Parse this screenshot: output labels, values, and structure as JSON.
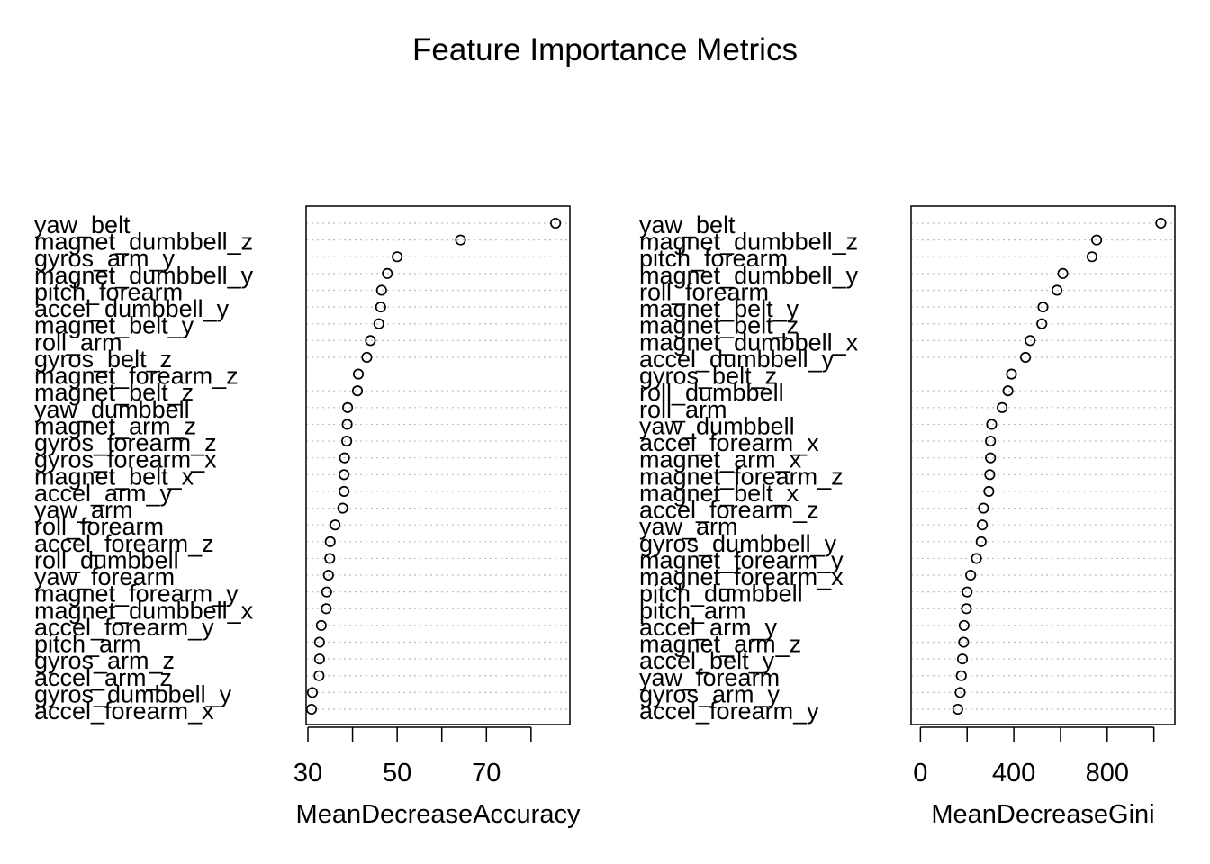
{
  "title": "Feature Importance Metrics",
  "chart_data": [
    {
      "type": "dotchart",
      "title": "",
      "xlabel": "MeanDecreaseAccuracy",
      "ylabel": "",
      "xlim": [
        29.6,
        88.7
      ],
      "xticks": [
        30,
        40,
        50,
        60,
        70,
        80
      ],
      "xtick_labels": [
        "30",
        "",
        "50",
        "",
        "70",
        ""
      ],
      "grid": "dotted horizontal",
      "point_color": "#000000",
      "categories": [
        "yaw_belt",
        "magnet_dumbbell_z",
        "gyros_arm_y",
        "magnet_dumbbell_y",
        "pitch_forearm",
        "accel_dumbbell_y",
        "magnet_belt_y",
        "roll_arm",
        "gyros_belt_z",
        "magnet_forearm_z",
        "magnet_belt_z",
        "yaw_dumbbell",
        "magnet_arm_z",
        "gyros_forearm_z",
        "gyros_forearm_x",
        "magnet_belt_x",
        "accel_arm_y",
        "yaw_arm",
        "roll_forearm",
        "accel_forearm_z",
        "roll_dumbbell",
        "yaw_forearm",
        "magnet_forearm_y",
        "magnet_dumbbell_x",
        "accel_forearm_y",
        "pitch_arm",
        "gyros_arm_z",
        "accel_arm_z",
        "gyros_dumbbell_y",
        "accel_forearm_x"
      ],
      "values": [
        85.5,
        64.2,
        50.0,
        47.8,
        46.5,
        46.3,
        45.9,
        44.0,
        43.2,
        41.3,
        41.1,
        38.9,
        38.8,
        38.7,
        38.2,
        38.1,
        38.1,
        37.8,
        36.1,
        35.0,
        34.9,
        34.6,
        34.2,
        34.1,
        33.0,
        32.6,
        32.6,
        32.5,
        31.0,
        30.8
      ]
    },
    {
      "type": "dotchart",
      "title": "",
      "xlabel": "MeanDecreaseGini",
      "ylabel": "",
      "xlim": [
        -40,
        1090
      ],
      "xticks": [
        0,
        200,
        400,
        600,
        800,
        1000
      ],
      "xtick_labels": [
        "0",
        "",
        "400",
        "",
        "800",
        ""
      ],
      "grid": "dotted horizontal",
      "point_color": "#000000",
      "categories": [
        "yaw_belt",
        "magnet_dumbbell_z",
        "pitch_forearm",
        "magnet_dumbbell_y",
        "roll_forearm",
        "magnet_belt_y",
        "magnet_belt_z",
        "magnet_dumbbell_x",
        "accel_dumbbell_y",
        "gyros_belt_z",
        "roll_dumbbell",
        "roll_arm",
        "yaw_dumbbell",
        "accel_forearm_x",
        "magnet_arm_x",
        "magnet_forearm_z",
        "magnet_belt_x",
        "accel_forearm_z",
        "yaw_arm",
        "gyros_dumbbell_y",
        "magnet_forearm_y",
        "magnet_forearm_x",
        "pitch_dumbbell",
        "pitch_arm",
        "accel_arm_y",
        "magnet_arm_z",
        "accel_belt_y",
        "yaw_forearm",
        "gyros_arm_y",
        "accel_forearm_y"
      ],
      "values": [
        1030,
        755,
        735,
        610,
        585,
        525,
        520,
        470,
        450,
        390,
        375,
        350,
        305,
        300,
        300,
        297,
        293,
        270,
        265,
        260,
        240,
        215,
        200,
        197,
        187,
        185,
        180,
        175,
        170,
        160
      ]
    }
  ]
}
